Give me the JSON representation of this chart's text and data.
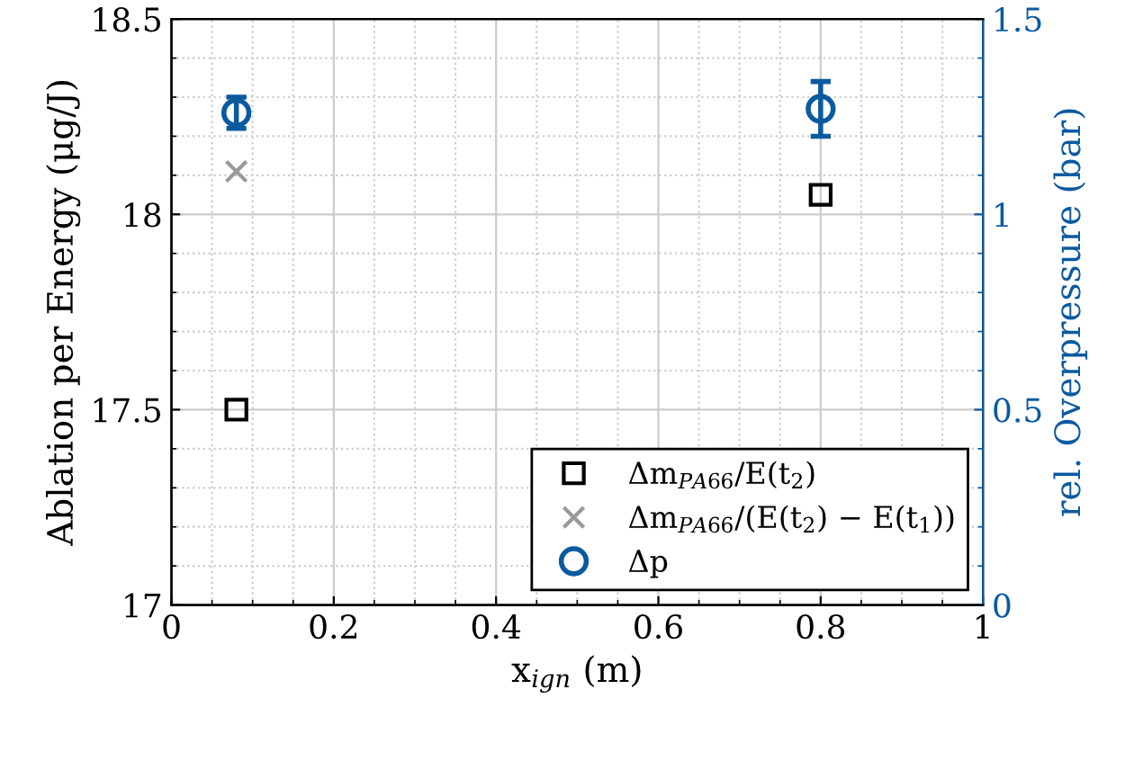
{
  "chart_data": {
    "type": "scatter",
    "xlabel": "x$_{ign}$ (m)",
    "ylabel": "Ablation per Energy (μg/J)",
    "y2label": "rel. Overpressure (bar)",
    "xlim": [
      0,
      1
    ],
    "xticks": [
      0,
      0.2,
      0.4,
      0.6,
      0.8,
      1
    ],
    "ylim": [
      17,
      18.5
    ],
    "yticks": [
      17,
      17.5,
      18,
      18.5
    ],
    "y2lim": [
      0,
      1.5
    ],
    "y2ticks": [
      0,
      0.5,
      1,
      1.5
    ],
    "grid": true,
    "legend": "bottom right",
    "x": [
      0.08,
      0.8
    ],
    "series": [
      {
        "name": "Δm$_{PA66}$/E(t$_{2}$)",
        "color": "#000000",
        "marker": "square",
        "values": [
          17.5,
          18.05
        ]
      },
      {
        "name": "Δm$_{PA66}$/(E(t$_{2}$) − E(t$_{1}$))",
        "color": "#999999",
        "marker": "cross",
        "values": [
          18.11,
          null
        ]
      },
      {
        "name": "Δp",
        "color": "#0b5aa0",
        "marker": "circle",
        "axis": "y2",
        "values": [
          1.26,
          1.27
        ],
        "errors": [
          0.04,
          0.07
        ]
      }
    ]
  }
}
